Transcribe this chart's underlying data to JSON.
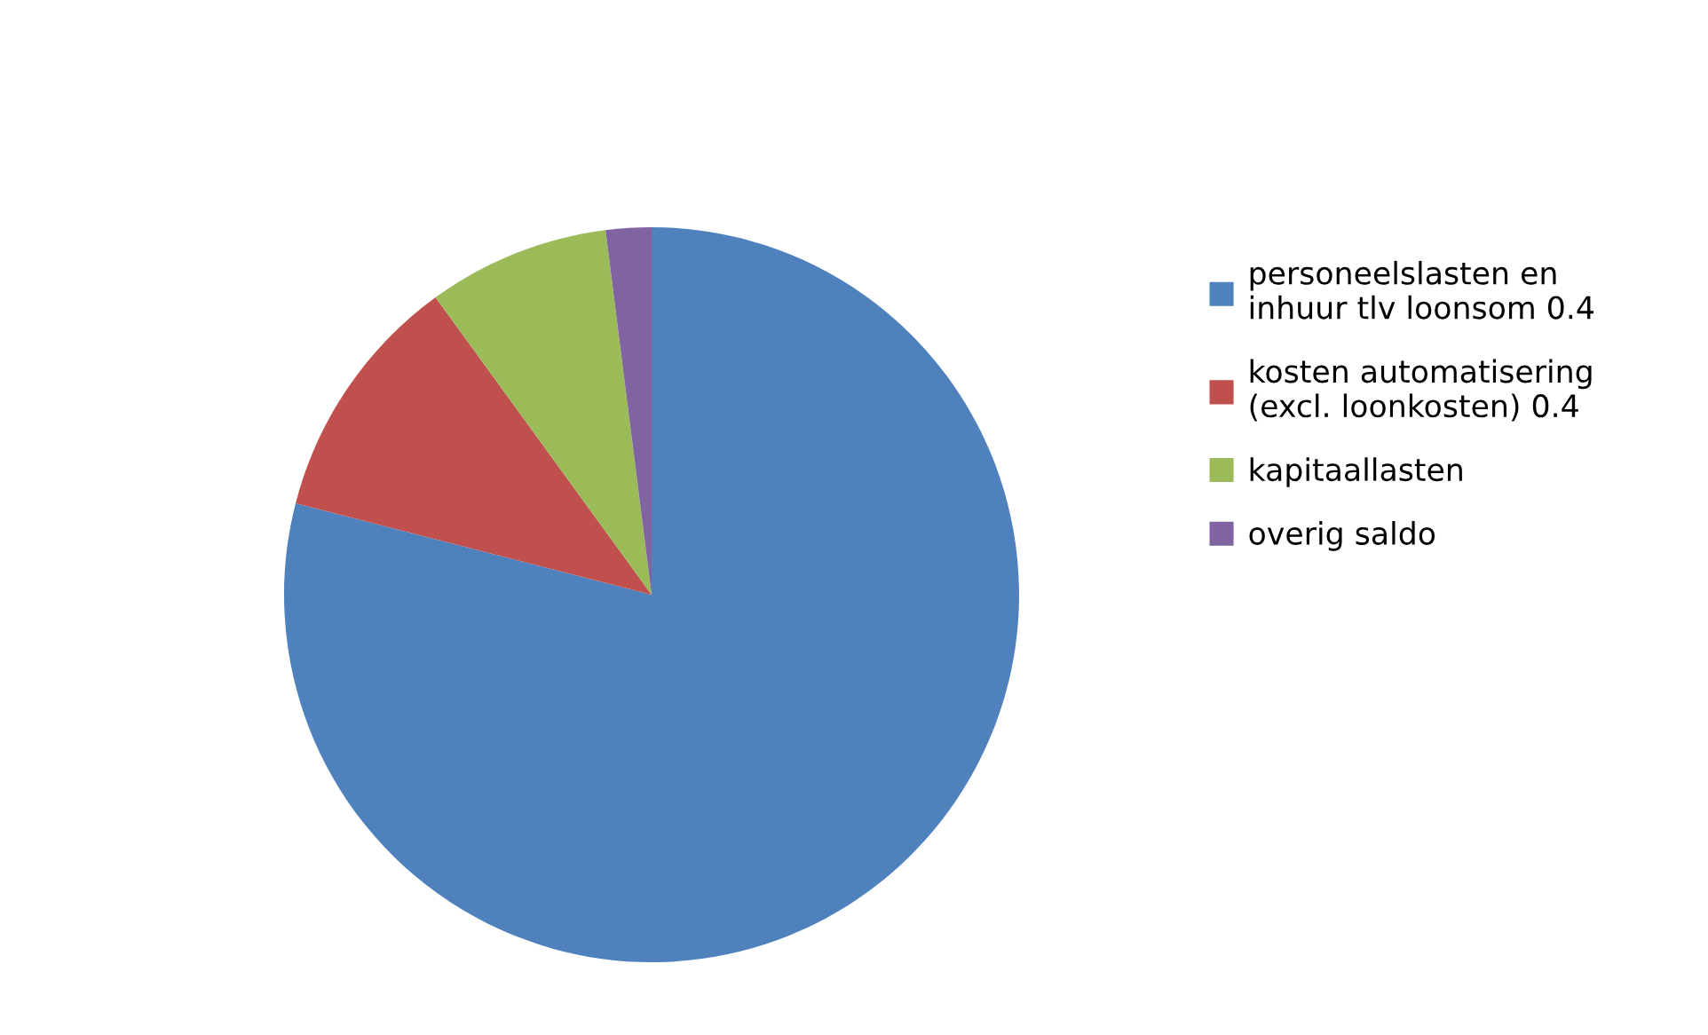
{
  "chart_data": {
    "type": "pie",
    "categories": [
      "personeelslasten en\ninhuur tlv loonsom 0.4",
      "kosten automatisering\n(excl. loonkosten) 0.4",
      "kapitaallasten",
      "overig saldo"
    ],
    "values": [
      79,
      11,
      8,
      2
    ],
    "colors": [
      "#4f81bd",
      "#c0504d",
      "#9bbb59",
      "#8064a2"
    ],
    "legend": "right"
  }
}
